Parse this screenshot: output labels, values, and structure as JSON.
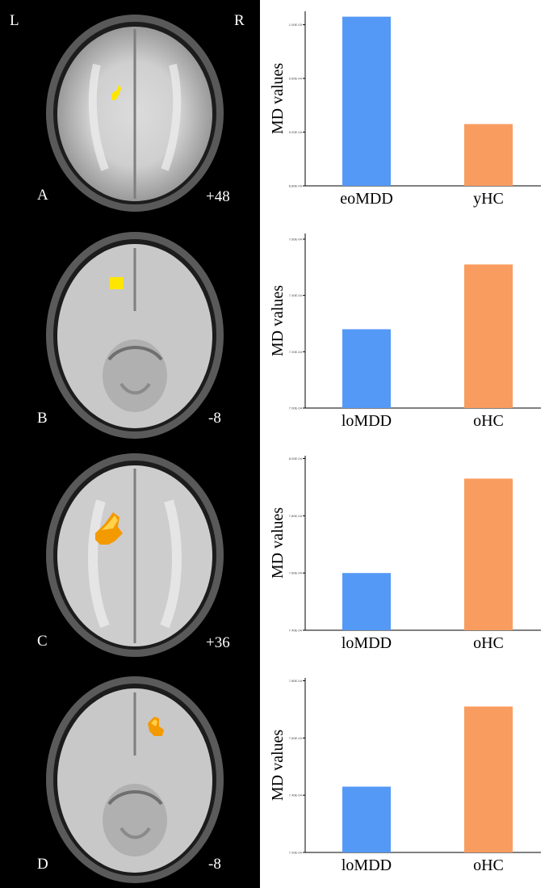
{
  "figure": {
    "orientation_left": "L",
    "orientation_right": "R"
  },
  "brain_panels": [
    {
      "letter": "A",
      "slice": "+48"
    },
    {
      "letter": "B",
      "slice": "-8"
    },
    {
      "letter": "C",
      "slice": "+36"
    },
    {
      "letter": "D",
      "slice": "-8"
    }
  ],
  "colors": {
    "blue_bar": "#5599f7",
    "orange_bar": "#f99c5f",
    "activation_yellow": "#ffe600",
    "activation_orange": "#f39a00"
  },
  "chart_data": [
    {
      "type": "bar",
      "ylabel": "MD values",
      "categories": [
        "eoMDD",
        "yHC"
      ],
      "values": [
        0.001006,
        0.000926
      ],
      "ylim": [
        0.00088,
        0.00101
      ],
      "yticks": [
        0.00088,
        0.00092,
        0.00096,
        0.001
      ],
      "ytick_labels": [
        "8.80E-04",
        "9.20E-04",
        "9.60E-04",
        "1.00E-03"
      ]
    },
    {
      "type": "bar",
      "ylabel": "MD values",
      "categories": [
        "loMDD",
        "oHC"
      ],
      "values": [
        0.000728,
        0.000751
      ],
      "ylim": [
        0.0007,
        0.000762
      ],
      "yticks": [
        0.0007,
        0.00072,
        0.00074,
        0.00076
      ],
      "ytick_labels": [
        "7.00E-04",
        "7.20E-04",
        "7.40E-04",
        "7.60E-04"
      ]
    },
    {
      "type": "bar",
      "ylabel": "MD values",
      "categories": [
        "loMDD",
        "oHC"
      ],
      "values": [
        0.00076,
        0.000793
      ],
      "ylim": [
        0.00074,
        0.000801
      ],
      "yticks": [
        0.00074,
        0.00076,
        0.00078,
        0.0008
      ],
      "ytick_labels": [
        "7.40E-04",
        "7.60E-04",
        "7.80E-04",
        "8.00E-04"
      ]
    },
    {
      "type": "bar",
      "ylabel": "MD values",
      "categories": [
        "loMDD",
        "oHC"
      ],
      "values": [
        0.000743,
        0.000771
      ],
      "ylim": [
        0.00072,
        0.000781
      ],
      "yticks": [
        0.00072,
        0.00074,
        0.00076,
        0.00078
      ],
      "ytick_labels": [
        "7.20E-04",
        "7.40E-04",
        "7.60E-04",
        "7.80E-04"
      ]
    }
  ]
}
